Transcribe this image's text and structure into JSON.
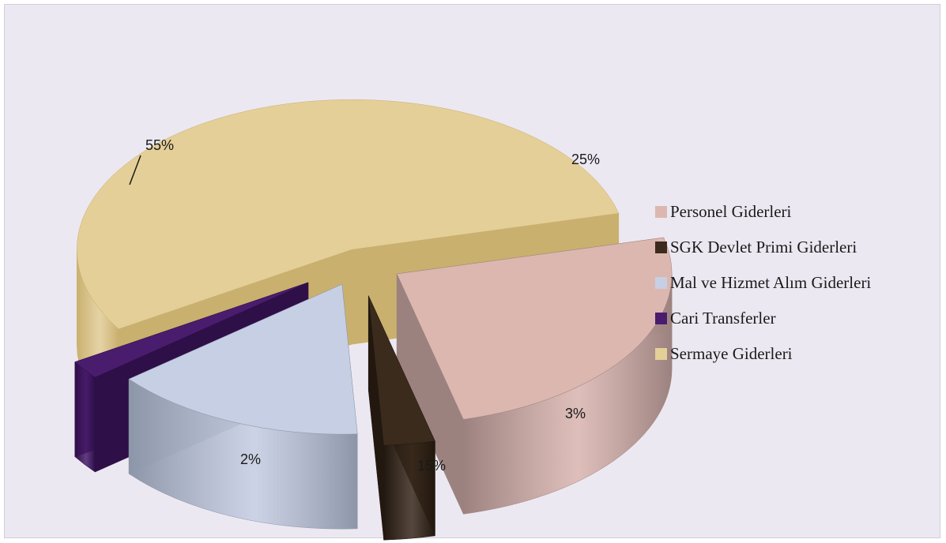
{
  "chart_data": {
    "type": "pie",
    "style": "3d-exploded",
    "legend_position": "right",
    "slices": [
      {
        "label": "Personel Giderleri",
        "value": 25,
        "value_label": "25%",
        "color": "#dcb7b0",
        "side_color": "#9c827f"
      },
      {
        "label": "SGK Devlet Primi Giderleri",
        "value": 3,
        "value_label": "3%",
        "color": "#3b2b1d",
        "side_color": "#22180f"
      },
      {
        "label": "Mal ve Hizmet Alım Giderleri",
        "value": 15,
        "value_label": "15%",
        "color": "#c7cfe4",
        "side_color": "#8d96a8"
      },
      {
        "label": "Cari Transferler",
        "value": 2,
        "value_label": "2%",
        "color": "#4a1c6e",
        "side_color": "#2e0f48"
      },
      {
        "label": "Sermaye Giderleri",
        "value": 55,
        "value_label": "55%",
        "color": "#e4cf98",
        "side_color": "#c9b06e"
      }
    ]
  }
}
